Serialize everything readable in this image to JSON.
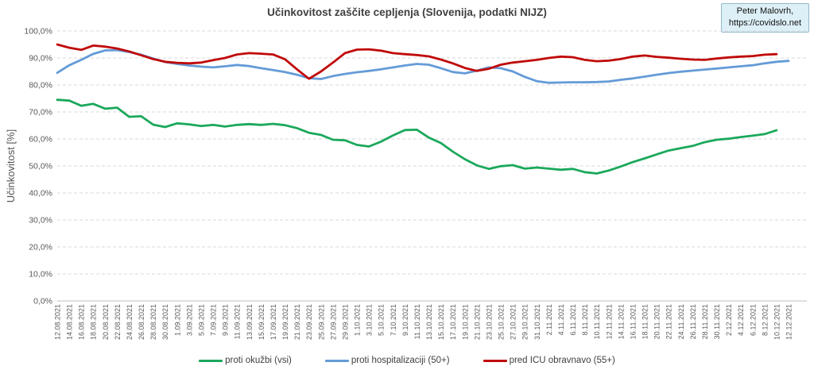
{
  "header": {
    "credit_line1": "Peter Malovrh,",
    "credit_line2": "https://covidslo.net"
  },
  "chart_data": {
    "type": "line",
    "title": "Učinkovitost zaščite cepljenja (Slovenija, podatki NIJZ)",
    "xlabel": "",
    "ylabel": "Učinkovitost [%]",
    "ylim": [
      0,
      100
    ],
    "ytick_step": 10,
    "ytick_labels": [
      "0,0%",
      "10,0%",
      "20,0%",
      "30,0%",
      "40,0%",
      "50,0%",
      "60,0%",
      "70,0%",
      "80,0%",
      "90,0%",
      "100,0%"
    ],
    "grid": "horizontal-dashed",
    "x_labels_rotated": true,
    "legend_position": "bottom",
    "categories": [
      "12.08.2021",
      "14.08.2021",
      "16.08.2021",
      "18.08.2021",
      "20.08.2021",
      "22.08.2021",
      "24.08.2021",
      "26.08.2021",
      "28.08.2021",
      "30.08.2021",
      "1.09.2021",
      "3.09.2021",
      "5.09.2021",
      "7.09.2021",
      "9.09.2021",
      "11.09.2021",
      "13.09.2021",
      "15.09.2021",
      "17.09.2021",
      "19.09.2021",
      "21.09.2021",
      "23.09.2021",
      "25.09.2021",
      "27.09.2021",
      "29.09.2021",
      "1.10.2021",
      "3.10.2021",
      "5.10.2021",
      "7.10.2021",
      "9.10.2021",
      "11.10.2021",
      "13.10.2021",
      "15.10.2021",
      "17.10.2021",
      "19.10.2021",
      "21.10.2021",
      "23.10.2021",
      "25.10.2021",
      "27.10.2021",
      "29.10.2021",
      "31.10.2021",
      "2.11.2021",
      "4.11.2021",
      "6.11.2021",
      "8.11.2021",
      "10.11.2021",
      "12.11.2021",
      "14.11.2021",
      "16.11.2021",
      "18.11.2021",
      "20.11.2021",
      "22.11.2021",
      "24.11.2021",
      "26.11.2021",
      "28.11.2021",
      "30.11.2021",
      "2.12.2021",
      "4.12.2021",
      "6.12.2021",
      "8.12.2021",
      "10.12.2021",
      "12.12.2021"
    ],
    "series": [
      {
        "name": "proti okužbi (vsi)",
        "color": "#1ba85c",
        "values": [
          74.5,
          74.2,
          72.3,
          73.0,
          71.2,
          71.6,
          68.2,
          68.4,
          65.3,
          64.4,
          65.8,
          65.4,
          64.8,
          65.2,
          64.6,
          65.2,
          65.5,
          65.2,
          65.6,
          65.1,
          64.0,
          62.3,
          61.5,
          59.7,
          59.5,
          57.8,
          57.2,
          59.0,
          61.3,
          63.3,
          63.4,
          60.5,
          58.5,
          55.3,
          52.5,
          50.2,
          48.9,
          49.9,
          50.3,
          49.0,
          49.4,
          49.0,
          48.6,
          48.9,
          47.7,
          47.2,
          48.3,
          49.8,
          51.4,
          52.8,
          54.3,
          55.7,
          56.6,
          57.4,
          58.8,
          59.7,
          60.1,
          60.7,
          61.2,
          61.8,
          63.2,
          null
        ]
      },
      {
        "name": "proti hospitalizaciji (50+)",
        "color": "#649bd7",
        "values": [
          84.5,
          87.3,
          89.3,
          91.5,
          92.8,
          92.9,
          92.2,
          91.2,
          89.8,
          88.5,
          87.8,
          87.2,
          86.8,
          86.5,
          86.9,
          87.4,
          87.0,
          86.2,
          85.5,
          84.8,
          83.8,
          82.5,
          82.2,
          83.3,
          84.1,
          84.7,
          85.2,
          85.8,
          86.5,
          87.2,
          87.8,
          87.5,
          86.2,
          84.8,
          84.3,
          85.3,
          86.5,
          86.2,
          85.0,
          83.0,
          81.4,
          80.8,
          80.9,
          81.0,
          81.0,
          81.1,
          81.3,
          81.9,
          82.4,
          83.1,
          83.8,
          84.4,
          84.9,
          85.3,
          85.7,
          86.1,
          86.5,
          86.9,
          87.3,
          88.0,
          88.6,
          88.9
        ]
      },
      {
        "name": "pred ICU obravnavo (55+)",
        "color": "#c00909",
        "values": [
          95.0,
          93.8,
          93.0,
          94.6,
          94.2,
          93.5,
          92.4,
          91.0,
          89.6,
          88.6,
          88.2,
          88.0,
          88.3,
          89.2,
          90.0,
          91.3,
          91.8,
          91.6,
          91.3,
          89.5,
          85.8,
          82.3,
          85.0,
          88.3,
          91.8,
          93.1,
          93.2,
          92.7,
          91.8,
          91.4,
          91.1,
          90.6,
          89.4,
          88.0,
          86.3,
          85.2,
          86.0,
          87.5,
          88.3,
          88.8,
          89.3,
          90.0,
          90.5,
          90.3,
          89.3,
          88.8,
          89.0,
          89.6,
          90.5,
          90.9,
          90.4,
          90.1,
          89.7,
          89.4,
          89.3,
          89.8,
          90.2,
          90.5,
          90.7,
          91.2,
          91.4,
          null
        ]
      }
    ]
  }
}
